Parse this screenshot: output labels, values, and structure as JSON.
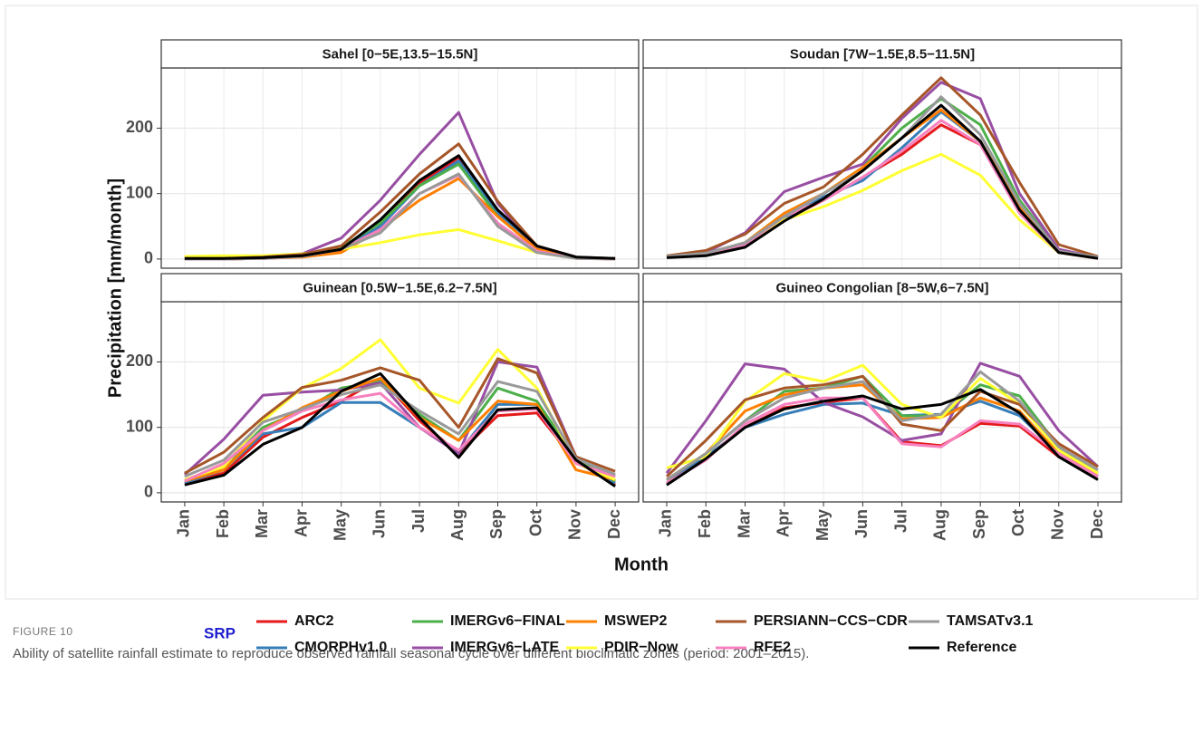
{
  "y_label": "Precipitation [mm/month]",
  "x_label": "Month",
  "legend_title": "SRP",
  "caption_label": "FIGURE 10",
  "caption": "Ability of satellite rainfall estimate to reproduce observed rainfall seasonal cycle over different bioclimatic zones (period: 2001–2015).",
  "chart_data": [
    {
      "type": "line",
      "title": "Sahel [0−5E,13.5−15.5N]",
      "categories": [
        "Jan",
        "Feb",
        "Mar",
        "Apr",
        "May",
        "Jun",
        "Jul",
        "Aug",
        "Sep",
        "Oct",
        "Nov",
        "Dec"
      ],
      "ylim": [
        -14,
        292
      ],
      "yticks": [
        0,
        100,
        200
      ],
      "grid": true,
      "series": [
        {
          "name": "ARC2",
          "color": "#e41a1c",
          "values": [
            0,
            0,
            1,
            4,
            14,
            55,
            115,
            155,
            70,
            18,
            2,
            0
          ]
        },
        {
          "name": "CMORPHv1.0",
          "color": "#377eb8",
          "values": [
            0,
            0,
            1,
            4,
            15,
            50,
            112,
            150,
            70,
            18,
            2,
            0
          ]
        },
        {
          "name": "IMERGv6−FINAL",
          "color": "#4daf4a",
          "values": [
            0,
            1,
            2,
            5,
            18,
            55,
            112,
            145,
            65,
            15,
            2,
            0
          ]
        },
        {
          "name": "IMERGv6−LATE",
          "color": "#984ea3",
          "values": [
            1,
            1,
            3,
            8,
            32,
            90,
            160,
            224,
            85,
            15,
            2,
            0
          ]
        },
        {
          "name": "MSWEP2",
          "color": "#ff7f00",
          "values": [
            0,
            0,
            1,
            3,
            10,
            45,
            90,
            123,
            65,
            15,
            2,
            0
          ]
        },
        {
          "name": "PDIR−Now",
          "color": "#ffff33",
          "values": [
            4,
            5,
            5,
            8,
            15,
            25,
            37,
            45,
            28,
            10,
            1,
            0
          ]
        },
        {
          "name": "PERSIANN−CCS−CDR",
          "color": "#a65628",
          "values": [
            1,
            1,
            3,
            7,
            20,
            72,
            130,
            176,
            88,
            20,
            3,
            1
          ]
        },
        {
          "name": "RFE2",
          "color": "#f781bf",
          "values": [
            0,
            0,
            1,
            4,
            15,
            45,
            100,
            128,
            55,
            12,
            1,
            0
          ]
        },
        {
          "name": "TAMSATv3.1",
          "color": "#999999",
          "values": [
            0,
            0,
            1,
            4,
            15,
            40,
            100,
            130,
            50,
            10,
            1,
            0
          ]
        },
        {
          "name": "Reference",
          "color": "#000000",
          "values": [
            1,
            1,
            2,
            5,
            15,
            60,
            120,
            158,
            75,
            20,
            3,
            1
          ]
        }
      ]
    },
    {
      "type": "line",
      "title": "Soudan [7W−1.5E,8.5−11.5N]",
      "categories": [
        "Jan",
        "Feb",
        "Mar",
        "Apr",
        "May",
        "Jun",
        "Jul",
        "Aug",
        "Sep",
        "Oct",
        "Nov",
        "Dec"
      ],
      "ylim": [
        -14,
        292
      ],
      "yticks": [
        0,
        100,
        200
      ],
      "grid": true,
      "series": [
        {
          "name": "ARC2",
          "color": "#e41a1c",
          "values": [
            3,
            7,
            20,
            60,
            90,
            125,
            160,
            205,
            175,
            80,
            10,
            1
          ]
        },
        {
          "name": "CMORPHv1.0",
          "color": "#377eb8",
          "values": [
            3,
            7,
            20,
            60,
            95,
            120,
            170,
            225,
            180,
            80,
            10,
            1
          ]
        },
        {
          "name": "IMERGv6−FINAL",
          "color": "#4daf4a",
          "values": [
            3,
            8,
            25,
            70,
            100,
            140,
            200,
            245,
            205,
            90,
            12,
            2
          ]
        },
        {
          "name": "IMERGv6−LATE",
          "color": "#984ea3",
          "values": [
            4,
            10,
            40,
            103,
            125,
            145,
            215,
            270,
            245,
            100,
            15,
            2
          ]
        },
        {
          "name": "MSWEP2",
          "color": "#ff7f00",
          "values": [
            3,
            8,
            25,
            70,
            100,
            140,
            185,
            228,
            180,
            80,
            10,
            1
          ]
        },
        {
          "name": "PDIR−Now",
          "color": "#ffff33",
          "values": [
            3,
            8,
            20,
            60,
            80,
            105,
            135,
            160,
            128,
            60,
            10,
            1
          ]
        },
        {
          "name": "PERSIANN−CCS−CDR",
          "color": "#a65628",
          "values": [
            5,
            13,
            38,
            85,
            110,
            160,
            220,
            277,
            220,
            117,
            22,
            4
          ]
        },
        {
          "name": "RFE2",
          "color": "#f781bf",
          "values": [
            3,
            8,
            22,
            65,
            90,
            125,
            165,
            212,
            175,
            70,
            10,
            1
          ]
        },
        {
          "name": "TAMSATv3.1",
          "color": "#999999",
          "values": [
            4,
            9,
            25,
            65,
            100,
            135,
            185,
            248,
            190,
            85,
            12,
            3
          ]
        },
        {
          "name": "Reference",
          "color": "#000000",
          "values": [
            2,
            5,
            18,
            58,
            92,
            135,
            185,
            235,
            180,
            75,
            10,
            1
          ]
        }
      ]
    },
    {
      "type": "line",
      "title": "Guinean [0.5W−1.5E,6.2−7.5N]",
      "categories": [
        "Jan",
        "Feb",
        "Mar",
        "Apr",
        "May",
        "Jun",
        "Jul",
        "Aug",
        "Sep",
        "Oct",
        "Nov",
        "Dec"
      ],
      "ylim": [
        -14,
        292
      ],
      "yticks": [
        0,
        100,
        200
      ],
      "grid": true,
      "series": [
        {
          "name": "ARC2",
          "color": "#e41a1c",
          "values": [
            15,
            30,
            85,
            115,
            140,
            175,
            110,
            60,
            118,
            122,
            48,
            12
          ]
        },
        {
          "name": "CMORPHv1.0",
          "color": "#377eb8",
          "values": [
            15,
            35,
            90,
            100,
            138,
            138,
            100,
            62,
            135,
            135,
            52,
            15
          ]
        },
        {
          "name": "IMERGv6−FINAL",
          "color": "#4daf4a",
          "values": [
            20,
            40,
            100,
            125,
            160,
            170,
            120,
            80,
            160,
            140,
            52,
            18
          ]
        },
        {
          "name": "IMERGv6−LATE",
          "color": "#984ea3",
          "values": [
            28,
            82,
            149,
            154,
            157,
            168,
            100,
            60,
            200,
            192,
            55,
            25
          ]
        },
        {
          "name": "MSWEP2",
          "color": "#ff7f00",
          "values": [
            18,
            35,
            95,
            130,
            155,
            175,
            115,
            80,
            140,
            135,
            35,
            20
          ]
        },
        {
          "name": "PDIR−Now",
          "color": "#ffff33",
          "values": [
            20,
            40,
            110,
            160,
            190,
            234,
            160,
            137,
            219,
            160,
            45,
            20
          ]
        },
        {
          "name": "PERSIANN−CCS−CDR",
          "color": "#a65628",
          "values": [
            30,
            62,
            115,
            161,
            172,
            191,
            172,
            100,
            205,
            183,
            55,
            33
          ]
        },
        {
          "name": "RFE2",
          "color": "#f781bf",
          "values": [
            18,
            45,
            95,
            125,
            142,
            152,
            100,
            65,
            125,
            128,
            45,
            25
          ]
        },
        {
          "name": "TAMSATv3.1",
          "color": "#999999",
          "values": [
            25,
            50,
            108,
            128,
            150,
            165,
            125,
            90,
            170,
            155,
            52,
            28
          ]
        },
        {
          "name": "Reference",
          "color": "#000000",
          "values": [
            12,
            27,
            74,
            100,
            155,
            182,
            115,
            54,
            127,
            130,
            50,
            10
          ]
        }
      ]
    },
    {
      "type": "line",
      "title": "Guineo Congolian [8−5W,6−7.5N]",
      "categories": [
        "Jan",
        "Feb",
        "Mar",
        "Apr",
        "May",
        "Jun",
        "Jul",
        "Aug",
        "Sep",
        "Oct",
        "Nov",
        "Dec"
      ],
      "ylim": [
        -14,
        292
      ],
      "yticks": [
        0,
        100,
        200
      ],
      "grid": true,
      "series": [
        {
          "name": "ARC2",
          "color": "#e41a1c",
          "values": [
            15,
            55,
            100,
            130,
            138,
            145,
            78,
            72,
            106,
            102,
            55,
            25
          ]
        },
        {
          "name": "CMORPHv1.0",
          "color": "#377eb8",
          "values": [
            15,
            55,
            100,
            120,
            135,
            137,
            118,
            120,
            140,
            118,
            60,
            25
          ]
        },
        {
          "name": "IMERGv6−FINAL",
          "color": "#4daf4a",
          "values": [
            20,
            60,
            110,
            155,
            160,
            178,
            118,
            117,
            165,
            148,
            70,
            30
          ]
        },
        {
          "name": "IMERGv6−LATE",
          "color": "#984ea3",
          "values": [
            30,
            110,
            197,
            189,
            138,
            116,
            80,
            90,
            198,
            178,
            95,
            40
          ]
        },
        {
          "name": "MSWEP2",
          "color": "#ff7f00",
          "values": [
            20,
            60,
            125,
            150,
            160,
            165,
            113,
            115,
            145,
            125,
            60,
            30
          ]
        },
        {
          "name": "PDIR−Now",
          "color": "#ffff33",
          "values": [
            38,
            55,
            140,
            182,
            170,
            195,
            135,
            115,
            175,
            135,
            65,
            30
          ]
        },
        {
          "name": "PERSIANN−CCS−CDR",
          "color": "#a65628",
          "values": [
            25,
            80,
            142,
            160,
            165,
            178,
            105,
            95,
            155,
            135,
            75,
            40
          ]
        },
        {
          "name": "RFE2",
          "color": "#f781bf",
          "values": [
            15,
            50,
            105,
            135,
            145,
            145,
            75,
            70,
            110,
            105,
            60,
            25
          ]
        },
        {
          "name": "TAMSATv3.1",
          "color": "#999999",
          "values": [
            20,
            60,
            110,
            145,
            160,
            170,
            110,
            120,
            185,
            140,
            70,
            35
          ]
        },
        {
          "name": "Reference",
          "color": "#000000",
          "values": [
            12,
            52,
            100,
            128,
            140,
            148,
            128,
            135,
            158,
            122,
            55,
            20
          ]
        }
      ]
    }
  ]
}
